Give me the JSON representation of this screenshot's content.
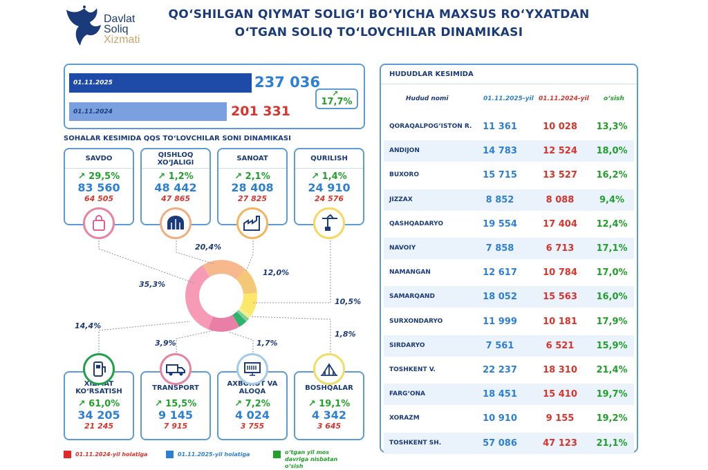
{
  "logo": {
    "line1": "Davlat",
    "line2": "Soliq",
    "line3": "Xizmati"
  },
  "title": {
    "line1": "QO‘SHILGAN QIYMAT SOLIG‘I BO‘YICHA MAXSUS RO‘YXATDAN",
    "line2": "O‘TGAN SOLIQ TO‘LOVCHILAR DINAMIKASI"
  },
  "summary": {
    "date_2025": "01.11.2025",
    "value_2025": "237 036",
    "date_2024": "01.11.2024",
    "value_2024": "201 331",
    "growth": "17,7%"
  },
  "sectors_title": "SOHALAR KESIMIDA QQS TO‘LOVCHILAR SONI DINAMIKASI",
  "colors": {
    "blue": "#2d7fd4",
    "red": "#d9342b",
    "green": "#22a02c",
    "navy": "#1a3a7a"
  },
  "sectors_top": [
    {
      "name": "SAVDO",
      "growth": "29,5%",
      "v2025": "83 560",
      "v2024": "64 505",
      "icon": "shopping-bag-icon"
    },
    {
      "name": "QISHLOQ XO‘JALIGI",
      "growth": "1,2%",
      "v2025": "48 442",
      "v2024": "47 865",
      "icon": "greenhouse-icon"
    },
    {
      "name": "SANOAT",
      "growth": "2,1%",
      "v2025": "28 408",
      "v2024": "27 825",
      "icon": "factory-icon"
    },
    {
      "name": "QURILISH",
      "growth": "1,4%",
      "v2025": "24 910",
      "v2024": "24 576",
      "icon": "crane-icon"
    }
  ],
  "sectors_bottom": [
    {
      "name": "XIZMAT KO‘RSATISH",
      "growth": "61,0%",
      "v2025": "34 205",
      "v2024": "21 245",
      "icon": "service-icon"
    },
    {
      "name": "TRANSPORT",
      "growth": "15,5%",
      "v2025": "9 145",
      "v2024": "7 915",
      "icon": "truck-icon"
    },
    {
      "name": "AXBOROT VA ALOQA",
      "growth": "7,2%",
      "v2025": "4 024",
      "v2024": "3 755",
      "icon": "computer-icon"
    },
    {
      "name": "BOSHQALAR",
      "growth": "19,1%",
      "v2025": "4 342",
      "v2024": "3 645",
      "icon": "other-icon"
    }
  ],
  "chart_data": {
    "type": "pie",
    "title": "SOHALAR KESIMIDA QQS TO‘LOVCHILAR SONI DINAMIKASI",
    "categories": [
      "Savdo",
      "Qishloq xo‘jaligi",
      "Sanoat",
      "Qurilish",
      "Boshqalar",
      "Axborot va aloqa",
      "Transport",
      "Xizmat ko‘rsatish"
    ],
    "values": [
      35.3,
      20.4,
      12.0,
      10.5,
      1.8,
      1.7,
      3.9,
      14.4
    ],
    "labels": [
      "35,3%",
      "20,4%",
      "12,0%",
      "10,5%",
      "1,8%",
      "1,7%",
      "3,9%",
      "14,4%"
    ],
    "colors": [
      "#f79ab6",
      "#f7b88e",
      "#f5c877",
      "#fbe86a",
      "#f1ee8c",
      "#7ed0a0",
      "#2fb36c",
      "#e97fa5"
    ]
  },
  "legend": {
    "red": "01.11.2024-yil holatiga",
    "blue": "01.11.2025-yil holatiga",
    "green": "o‘tgan yil mos davriga nisbatan o‘sish"
  },
  "table": {
    "title": "HUDUDLAR KESIMIDA",
    "headers": [
      "Hudud nomi",
      "01.11.2025-yil",
      "01.11.2024-yil",
      "o‘sish"
    ],
    "rows": [
      {
        "name": "QORAQALPOG‘ISTON R.",
        "v2025": "11 361",
        "v2024": "10 028",
        "growth": "13,3%"
      },
      {
        "name": "ANDIJON",
        "v2025": "14 783",
        "v2024": "12 524",
        "growth": "18,0%"
      },
      {
        "name": "BUXORO",
        "v2025": "15 715",
        "v2024": "13 527",
        "growth": "16,2%"
      },
      {
        "name": "JIZZAX",
        "v2025": "8 852",
        "v2024": "8 088",
        "growth": "9,4%"
      },
      {
        "name": "QASHQADARYO",
        "v2025": "19 554",
        "v2024": "17 404",
        "growth": "12,4%"
      },
      {
        "name": "NAVOIY",
        "v2025": "7 858",
        "v2024": "6 713",
        "growth": "17,1%"
      },
      {
        "name": "NAMANGAN",
        "v2025": "12 617",
        "v2024": "10 784",
        "growth": "17,0%"
      },
      {
        "name": "SAMARQAND",
        "v2025": "18 052",
        "v2024": "15 563",
        "growth": "16,0%"
      },
      {
        "name": "SURXONDARYO",
        "v2025": "11 999",
        "v2024": "10 181",
        "growth": "17,9%"
      },
      {
        "name": "SIRDARYO",
        "v2025": "7 561",
        "v2024": "6 521",
        "growth": "15,9%"
      },
      {
        "name": "TOSHKENT V.",
        "v2025": "22 237",
        "v2024": "18 310",
        "growth": "21,4%"
      },
      {
        "name": "FARG‘ONA",
        "v2025": "18 451",
        "v2024": "15 410",
        "growth": "19,7%"
      },
      {
        "name": "XORAZM",
        "v2025": "10 910",
        "v2024": "9 155",
        "growth": "19,2%"
      },
      {
        "name": "TOSHKENT SH.",
        "v2025": "57 086",
        "v2024": "47 123",
        "growth": "21,1%"
      }
    ]
  }
}
